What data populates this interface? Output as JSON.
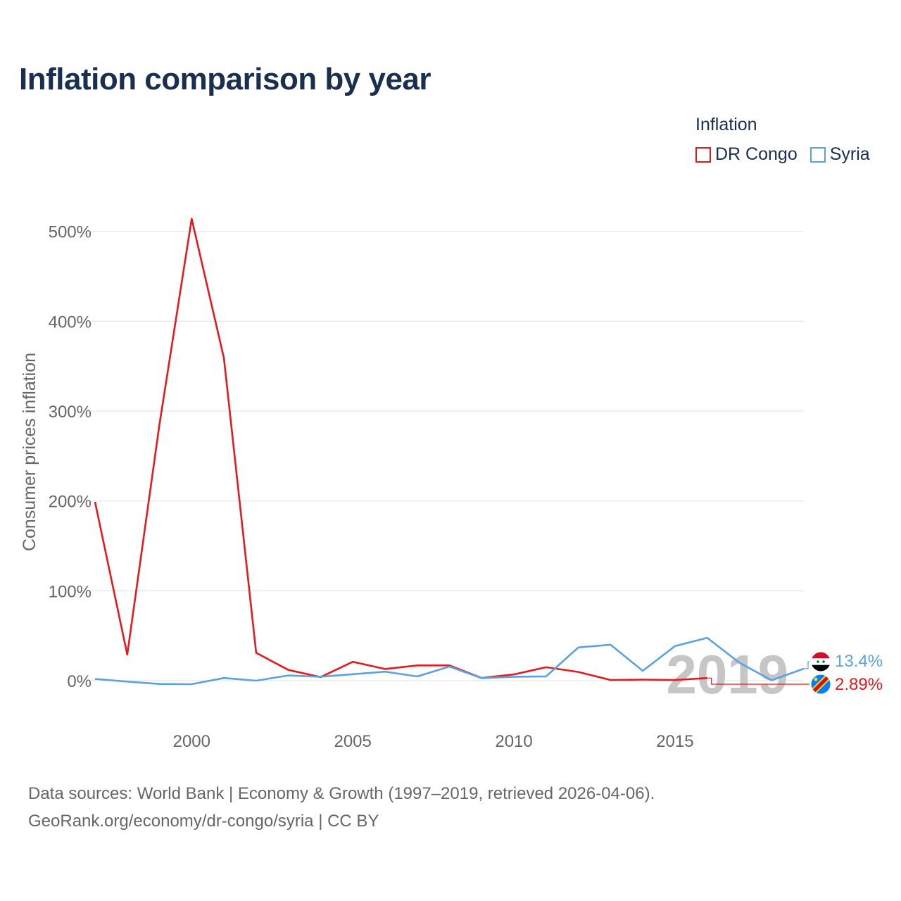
{
  "header": {
    "title": "Inflation comparison by year"
  },
  "legend": {
    "title": "Inflation",
    "items": [
      {
        "label": "DR Congo",
        "color": "#e41a1c"
      },
      {
        "label": "Syria",
        "color": "#5aa2e0"
      }
    ]
  },
  "footer": {
    "line1": "Data sources: World Bank | Economy & Growth (1997–2019, retrieved 2026-04-06).",
    "line2": "GeoRank.org/economy/dr-congo/syria | CC BY"
  },
  "chart_data": {
    "type": "line",
    "title": "Inflation comparison by year",
    "xlabel": "",
    "ylabel": "Consumer prices inflation",
    "xlim": [
      1997,
      2019
    ],
    "ylim": [
      -50,
      540
    ],
    "grid": true,
    "x_ticks": [
      2000,
      2005,
      2010,
      2015
    ],
    "x_tick_labels": [
      "2000",
      "2005",
      "2010",
      "2015"
    ],
    "y_ticks": [
      0,
      100,
      200,
      300,
      400,
      500
    ],
    "y_tick_labels": [
      "0%",
      "100%",
      "200%",
      "300%",
      "400%",
      "500%"
    ],
    "watermark_year": "2019",
    "series": [
      {
        "name": "DR Congo",
        "color": "#e41a1c",
        "x": [
          1997,
          1998,
          1999,
          2000,
          2001,
          2002,
          2003,
          2004,
          2005,
          2006,
          2007,
          2008,
          2009,
          2010,
          2011,
          2012,
          2013,
          2014,
          2015,
          2016
        ],
        "values": [
          199,
          29,
          285,
          514,
          359,
          31,
          12,
          4,
          21,
          13,
          17,
          17,
          3,
          7,
          15,
          9.7,
          0.8,
          1.2,
          0.8,
          2.89
        ],
        "end_label": "2.89%"
      },
      {
        "name": "Syria",
        "color": "#5aa2e0",
        "x": [
          1997,
          1998,
          1999,
          2000,
          2001,
          2002,
          2003,
          2004,
          2005,
          2006,
          2007,
          2008,
          2009,
          2010,
          2011,
          2012,
          2013,
          2014,
          2015,
          2016,
          2017,
          2018,
          2019
        ],
        "values": [
          1.9,
          -1,
          -3.7,
          -3.9,
          3,
          0.0,
          5.8,
          4.4,
          7.2,
          10,
          4.7,
          15.7,
          2.8,
          4.4,
          4.8,
          37,
          40,
          11,
          38.5,
          47.7,
          20,
          0.4,
          13.4
        ],
        "end_label": "13.4%"
      }
    ]
  }
}
